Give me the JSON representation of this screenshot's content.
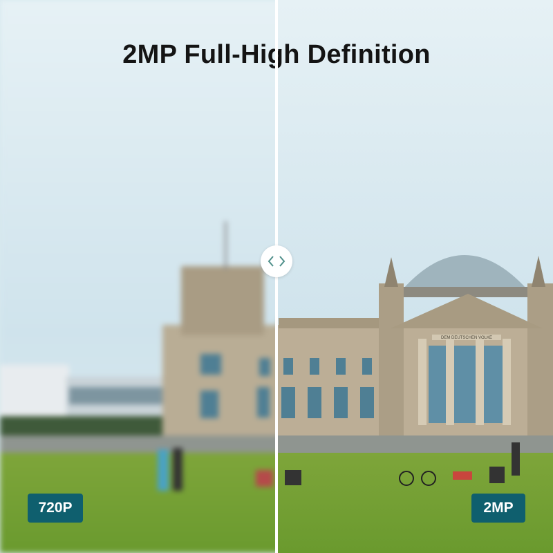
{
  "title": "2MP Full-High Definition",
  "left_label": "720P",
  "right_label": "2MP",
  "facade_inscription": "DEM DEUTSCHEN VOLKE",
  "colors": {
    "badge": "#0f5f6e",
    "divider": "#ffffff",
    "handle_arrows": "#4f8f8a"
  },
  "icons": {
    "handle": "chevron-left-right-icon"
  }
}
